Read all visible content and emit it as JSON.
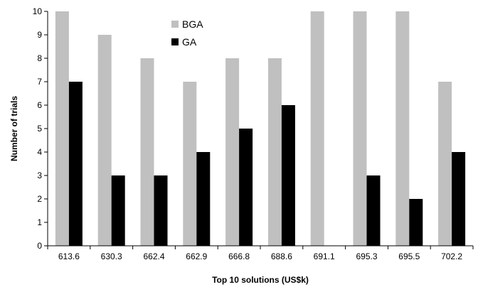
{
  "chart_data": {
    "type": "bar",
    "categories": [
      "613.6",
      "630.3",
      "662.4",
      "662.9",
      "666.8",
      "688.6",
      "691.1",
      "695.3",
      "695.5",
      "702.2"
    ],
    "series": [
      {
        "name": "BGA",
        "values": [
          10,
          9,
          8,
          7,
          8,
          8,
          10,
          10,
          10,
          7
        ],
        "color": "#c0c0c0"
      },
      {
        "name": "GA",
        "values": [
          7,
          3,
          3,
          4,
          5,
          6,
          0,
          3,
          2,
          4
        ],
        "color": "#000000"
      }
    ],
    "title": "",
    "xlabel": "Top 10 solutions (US$k)",
    "ylabel": "Number of trials",
    "ylim": [
      0,
      10
    ],
    "yticks": [
      0,
      1,
      2,
      3,
      4,
      5,
      6,
      7,
      8,
      9,
      10
    ],
    "grid": false,
    "legend_position": "top-center"
  }
}
